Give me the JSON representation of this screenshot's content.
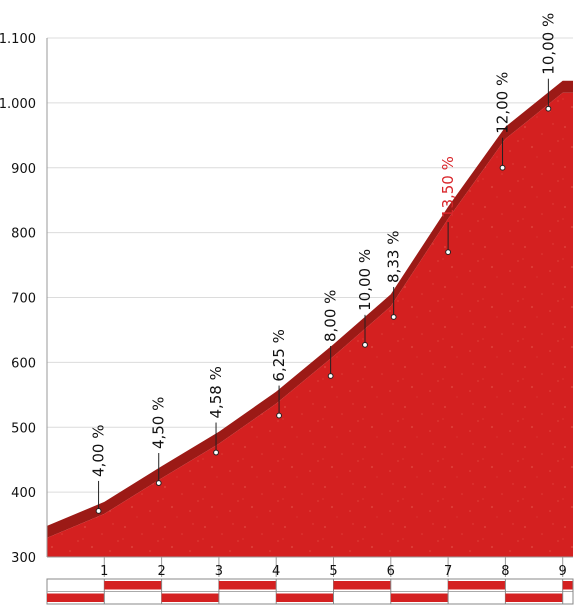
{
  "chart_data": {
    "type": "area",
    "title": "",
    "xlabel": "",
    "ylabel": "",
    "xlim": [
      0,
      9.3
    ],
    "ylim": [
      300,
      1100
    ],
    "x_ticks": [
      "1",
      "2",
      "3",
      "4",
      "5",
      "6",
      "7",
      "8",
      "9"
    ],
    "y_ticks": [
      "300",
      "400",
      "500",
      "600",
      "700",
      "800",
      "900",
      "1.000",
      "1.100"
    ],
    "grid": true,
    "profile": {
      "x": [
        0,
        1,
        2,
        3,
        4,
        5,
        6,
        7,
        8,
        9,
        9.3
      ],
      "y": [
        348,
        385,
        440,
        493,
        555,
        628,
        705,
        840,
        963,
        1034,
        1034
      ]
    },
    "gradients": [
      {
        "label": "4,00 %",
        "x": 0.9,
        "y": 371
      },
      {
        "label": "4,50 %",
        "x": 1.95,
        "y": 414
      },
      {
        "label": "4,58 %",
        "x": 2.95,
        "y": 461
      },
      {
        "label": "6,25 %",
        "x": 4.05,
        "y": 518
      },
      {
        "label": "8,00 %",
        "x": 4.95,
        "y": 579
      },
      {
        "label": "10,00 %",
        "x": 5.55,
        "y": 627
      },
      {
        "label": "8,33 %",
        "x": 6.05,
        "y": 670
      },
      {
        "label": "13,50 %",
        "x": 7.0,
        "y": 770,
        "highlight": true
      },
      {
        "label": "12,00 %",
        "x": 7.95,
        "y": 900
      },
      {
        "label": "10,00 %",
        "x": 8.75,
        "y": 991
      }
    ],
    "colors": {
      "fill": "#d42020",
      "band": "#9c1a16",
      "grid": "#dcdcdc",
      "highlight": "#d9262b"
    }
  }
}
